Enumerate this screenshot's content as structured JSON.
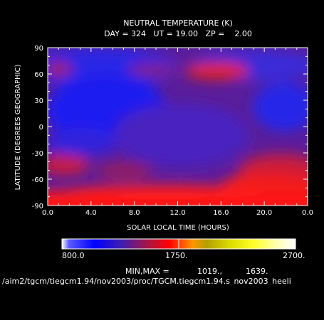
{
  "chart_data": {
    "type": "heatmap",
    "title": "NEUTRAL TEMPERATURE (K)",
    "subtitle": "DAY = 324   UT = 19.00   ZP =    2.00",
    "xlabel": "SOLAR LOCAL TIME (HOURS)",
    "ylabel": "LATITUDE (DEGREES GEOGRAPHIC)",
    "xlim": [
      0,
      24
    ],
    "ylim": [
      -90,
      90
    ],
    "x_ticks": [
      "0.0",
      "4.0",
      "8.0",
      "12.0",
      "16.0",
      "20.0",
      "0.0"
    ],
    "y_ticks": [
      "90",
      "60",
      "30",
      "0",
      "-30",
      "-60",
      "-90"
    ],
    "colorbar": {
      "min_label": "800.0",
      "mid_label": "1750.",
      "max_label": "2700.",
      "range": [
        800,
        2700
      ]
    },
    "minmax_label": "MIN,MAX =",
    "min_value": "1019.,",
    "max_value": "1639.",
    "file_path": "/aim2/tgcm/tiegcm1.94/nov2003/proc/TGCM.tiegcm1.94.s_nov2003_heeli",
    "grid": false
  },
  "colors": {
    "background": "#000000",
    "foreground": "#ffffff",
    "low": "#1e1ee0",
    "mid": "#c81e3c",
    "high": "#ff1414"
  }
}
